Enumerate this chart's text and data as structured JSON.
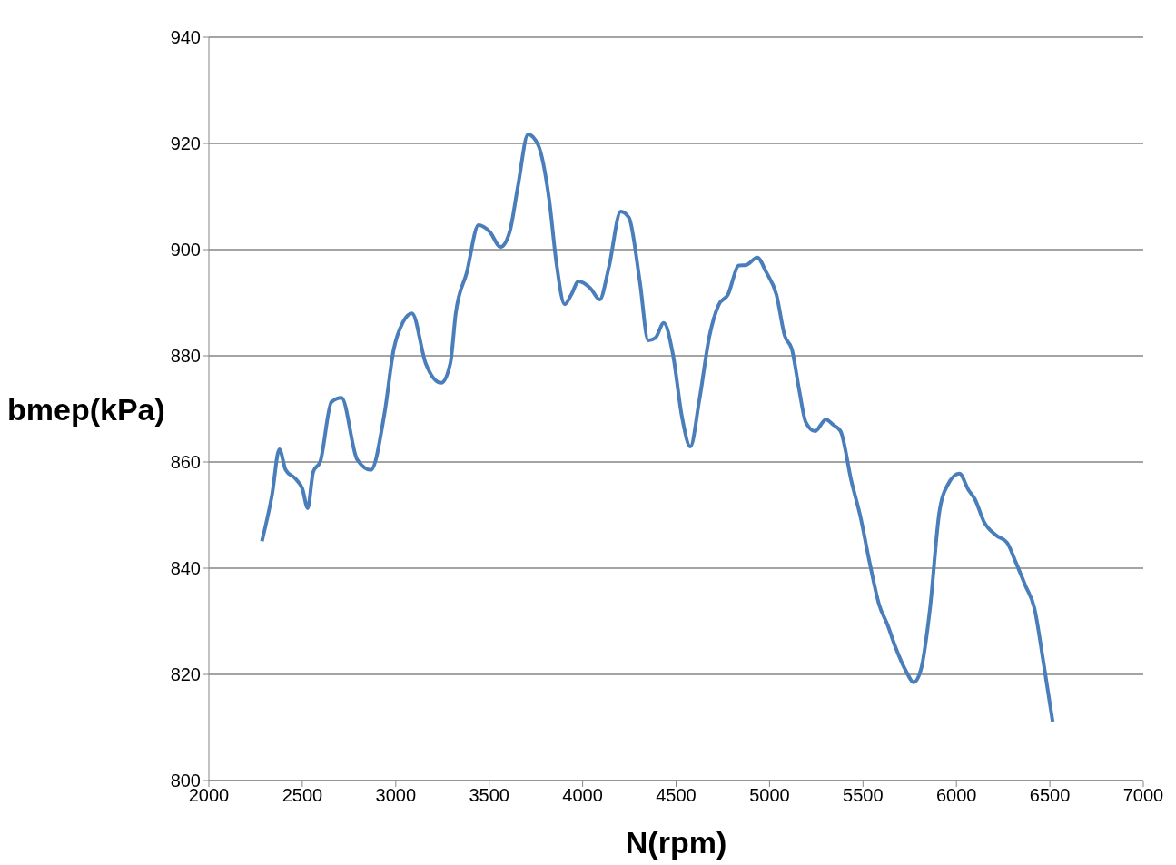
{
  "chart_data": {
    "type": "line",
    "xlabel": "N(rpm)",
    "ylabel": "bmep(kPa)",
    "xlim": [
      2000,
      7000
    ],
    "xticks": [
      2000,
      2500,
      3000,
      3500,
      4000,
      4500,
      5000,
      5500,
      6000,
      6500,
      7000
    ],
    "ylim": [
      800,
      940
    ],
    "yticks": [
      800,
      820,
      840,
      860,
      880,
      900,
      920,
      940
    ],
    "grid": "y",
    "marker": "none",
    "line_style": "solid",
    "legend": false,
    "series": [
      {
        "color": "#4a7ebb",
        "x": [
          2284,
          2338,
          2377,
          2411,
          2465,
          2500,
          2529,
          2558,
          2597,
          2656,
          2710,
          2793,
          2867,
          2940,
          2989,
          3038,
          3087,
          3160,
          3243,
          3292,
          3321,
          3380,
          3443,
          3502,
          3561,
          3610,
          3654,
          3708,
          3762,
          3821,
          3860,
          3904,
          3939,
          3978,
          4042,
          4091,
          4140,
          4204,
          4248,
          4306,
          4351,
          4390,
          4434,
          4483,
          4532,
          4576,
          4625,
          4679,
          4728,
          4777,
          4836,
          4875,
          4934,
          4983,
          5037,
          5081,
          5120,
          5159,
          5194,
          5243,
          5302,
          5341,
          5380,
          5438,
          5487,
          5536,
          5585,
          5634,
          5673,
          5732,
          5771,
          5810,
          5859,
          5908,
          5952,
          6016,
          6065,
          6099,
          6148,
          6212,
          6271,
          6319,
          6368,
          6417,
          6466,
          6515
        ],
        "values": [
          845.1,
          853.8,
          862.4,
          858.5,
          856.8,
          855,
          851.3,
          858.1,
          860.2,
          871.3,
          872.1,
          860.5,
          858.5,
          869.2,
          881.2,
          886.3,
          888,
          878.6,
          874.9,
          878.6,
          888,
          895.7,
          904.6,
          903.4,
          900.5,
          903.4,
          912,
          921.7,
          919.7,
          909.4,
          897.4,
          889.7,
          891.5,
          894,
          892.7,
          890.6,
          896.6,
          907.2,
          906,
          894,
          882.9,
          883.4,
          886.2,
          880.3,
          868.4,
          862.9,
          871.8,
          883.8,
          889.6,
          891.5,
          897,
          897.1,
          898.5,
          895.7,
          891.5,
          883.8,
          881.2,
          873.5,
          867.5,
          865.8,
          868,
          867,
          865.8,
          856.4,
          849.6,
          841,
          833.3,
          829.1,
          825.2,
          820.5,
          818.5,
          820.9,
          832.5,
          850.4,
          855.6,
          857.8,
          854.7,
          853,
          848.7,
          846.2,
          844.8,
          841,
          836.8,
          832.5,
          822.2,
          811.1
        ]
      }
    ]
  }
}
